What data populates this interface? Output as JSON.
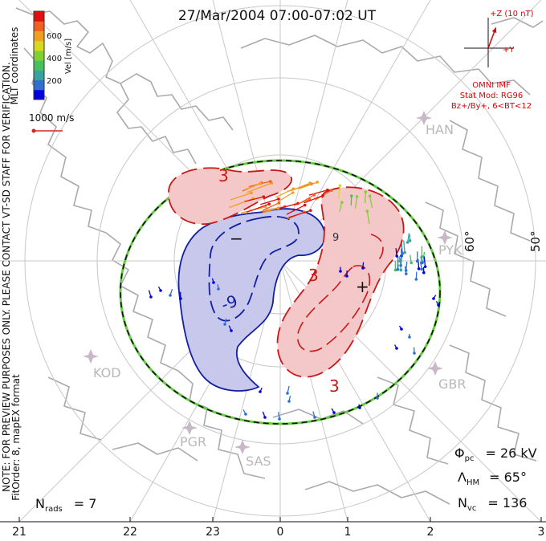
{
  "chart_data": {
    "type": "polar-map",
    "title": "27/Mar/2004 07:00-07:02 UT",
    "coordinate_label": "MLT coordinates",
    "note_text": "NOTE: FOR PREVIEW PURPOSES ONLY. PLEASE CONTACT VT-SD STAFF FOR VERIFICATION.",
    "fitorder_text": "FitOrder: 8, mapEX format",
    "velocity_scale": {
      "label": "Vel [m/s]",
      "ticks": [
        "200",
        "400",
        "600"
      ],
      "colors": [
        "#0000e0",
        "#2f6fd0",
        "#3aa0a0",
        "#48c060",
        "#80d030",
        "#d8d820",
        "#f0a020",
        "#f06020",
        "#e01010"
      ]
    },
    "reference_vector": {
      "label": "1000 m/s"
    },
    "imf": {
      "bz_label": "+Z (10 nT)",
      "by_label": "+Y",
      "source": "OMNI IMF",
      "model": "Stat Mod: RG96",
      "condition": "Bz+/By+, 6<BT<12",
      "by": 3.0,
      "bz": 8.0
    },
    "latitude_labels": [
      "60°",
      "50°"
    ],
    "mlt_ticks": [
      "21",
      "22",
      "23",
      "0",
      "1",
      "2",
      "3"
    ],
    "radars": [
      "HAN",
      "PYK",
      "KOD",
      "GBR",
      "PGR",
      "SAS"
    ],
    "potential_contours": {
      "negative_label": "-9",
      "positive_labels": [
        "3",
        "3",
        "3",
        "9"
      ],
      "cell_markers": [
        "−",
        "+"
      ]
    },
    "stats": {
      "phi_pc_symbol": "Φ",
      "phi_pc_sub": "pc",
      "phi_pc_value": "= 26 kV",
      "phi_pc_kv": 26,
      "lambda_hm_symbol": "Λ",
      "lambda_hm_sub": "HM",
      "lambda_hm_value": "= 65°",
      "lambda_hm_deg": 65,
      "nvc_symbol": "N",
      "nvc_sub": "vc",
      "nvc_value": "= 136",
      "nvc": 136,
      "nrads_symbol": "N",
      "nrads_sub": "rads",
      "nrads_value": "= 7",
      "nrads": 7
    },
    "colors": {
      "negative_contour": "#1020a0",
      "negative_fill": "#c8c8ec",
      "positive_contour": "#c81818",
      "positive_fill": "#f4c8c8",
      "map_outline": "#aaaaaa",
      "grid": "#c0c0c0",
      "boundary": "#66cc44",
      "imf_text": "#dd0000"
    }
  }
}
